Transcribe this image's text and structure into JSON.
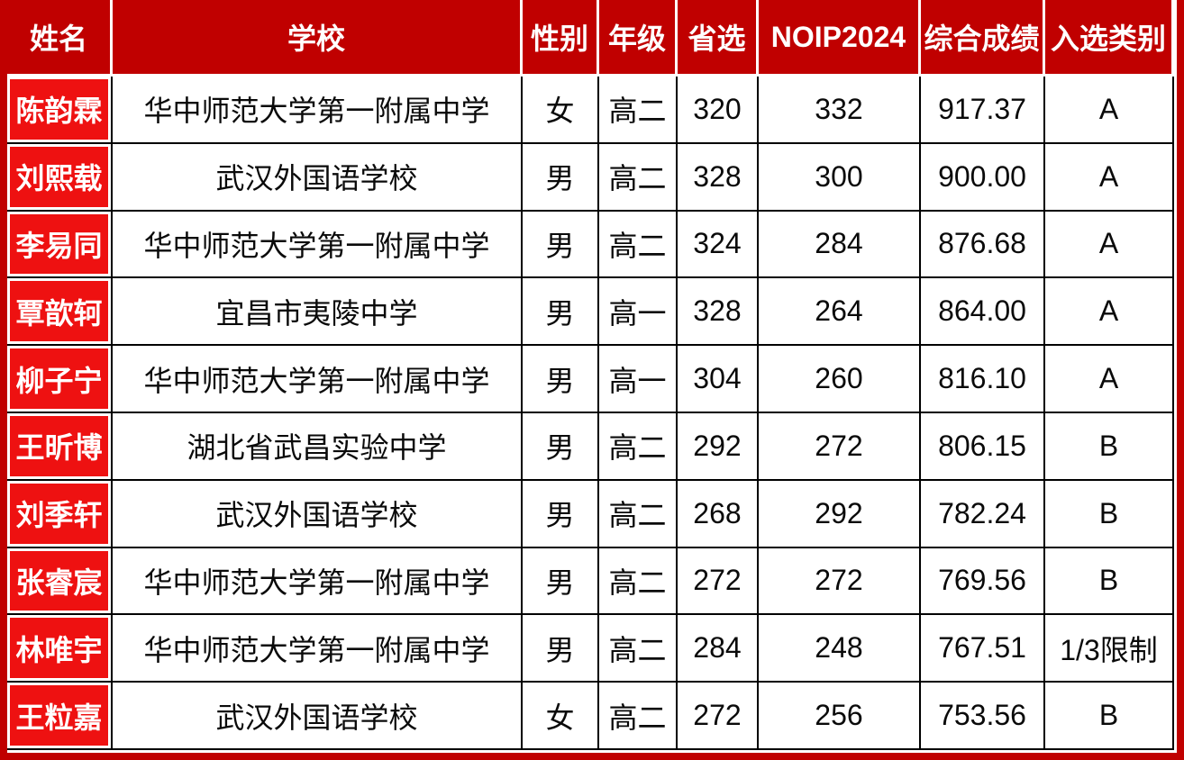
{
  "colors": {
    "frame_and_header_red": "#c00000",
    "name_cell_red": "#ee1111",
    "gridline_black": "#000000",
    "header_text": "#ffffff",
    "body_text": "#0a0a0a"
  },
  "table": {
    "columns": [
      "姓名",
      "学校",
      "性别",
      "年级",
      "省选",
      "NOIP2024",
      "综合成绩",
      "入选类别"
    ],
    "rows": [
      {
        "name": "陈韵霖",
        "school": "华中师范大学第一附属中学",
        "gender": "女",
        "grade": "高二",
        "provincial": "320",
        "noip": "332",
        "composite": "917.37",
        "category": "A"
      },
      {
        "name": "刘熙载",
        "school": "武汉外国语学校",
        "gender": "男",
        "grade": "高二",
        "provincial": "328",
        "noip": "300",
        "composite": "900.00",
        "category": "A"
      },
      {
        "name": "李易同",
        "school": "华中师范大学第一附属中学",
        "gender": "男",
        "grade": "高二",
        "provincial": "324",
        "noip": "284",
        "composite": "876.68",
        "category": "A"
      },
      {
        "name": "覃歆轲",
        "school": "宜昌市夷陵中学",
        "gender": "男",
        "grade": "高一",
        "provincial": "328",
        "noip": "264",
        "composite": "864.00",
        "category": "A"
      },
      {
        "name": "柳子宁",
        "school": "华中师范大学第一附属中学",
        "gender": "男",
        "grade": "高一",
        "provincial": "304",
        "noip": "260",
        "composite": "816.10",
        "category": "A"
      },
      {
        "name": "王昕博",
        "school": "湖北省武昌实验中学",
        "gender": "男",
        "grade": "高二",
        "provincial": "292",
        "noip": "272",
        "composite": "806.15",
        "category": "B"
      },
      {
        "name": "刘季轩",
        "school": "武汉外国语学校",
        "gender": "男",
        "grade": "高二",
        "provincial": "268",
        "noip": "292",
        "composite": "782.24",
        "category": "B"
      },
      {
        "name": "张睿宸",
        "school": "华中师范大学第一附属中学",
        "gender": "男",
        "grade": "高二",
        "provincial": "272",
        "noip": "272",
        "composite": "769.56",
        "category": "B"
      },
      {
        "name": "林唯宇",
        "school": "华中师范大学第一附属中学",
        "gender": "男",
        "grade": "高二",
        "provincial": "284",
        "noip": "248",
        "composite": "767.51",
        "category": "1/3限制"
      },
      {
        "name": "王粒嘉",
        "school": "武汉外国语学校",
        "gender": "女",
        "grade": "高二",
        "provincial": "272",
        "noip": "256",
        "composite": "753.56",
        "category": "B"
      }
    ]
  },
  "chart_data": {
    "type": "table",
    "title": "",
    "columns": [
      "姓名",
      "学校",
      "性别",
      "年级",
      "省选",
      "NOIP2024",
      "综合成绩",
      "入选类别"
    ],
    "rows": [
      [
        "陈韵霖",
        "华中师范大学第一附属中学",
        "女",
        "高二",
        320,
        332,
        917.37,
        "A"
      ],
      [
        "刘熙载",
        "武汉外国语学校",
        "男",
        "高二",
        328,
        300,
        900.0,
        "A"
      ],
      [
        "李易同",
        "华中师范大学第一附属中学",
        "男",
        "高二",
        324,
        284,
        876.68,
        "A"
      ],
      [
        "覃歆轲",
        "宜昌市夷陵中学",
        "男",
        "高一",
        328,
        264,
        864.0,
        "A"
      ],
      [
        "柳子宁",
        "华中师范大学第一附属中学",
        "男",
        "高一",
        304,
        260,
        816.1,
        "A"
      ],
      [
        "王昕博",
        "湖北省武昌实验中学",
        "男",
        "高二",
        292,
        272,
        806.15,
        "B"
      ],
      [
        "刘季轩",
        "武汉外国语学校",
        "男",
        "高二",
        268,
        292,
        782.24,
        "B"
      ],
      [
        "张睿宸",
        "华中师范大学第一附属中学",
        "男",
        "高二",
        272,
        272,
        769.56,
        "B"
      ],
      [
        "林唯宇",
        "华中师范大学第一附属中学",
        "男",
        "高二",
        284,
        248,
        767.51,
        "1/3限制"
      ],
      [
        "王粒嘉",
        "武汉外国语学校",
        "女",
        "高二",
        272,
        256,
        753.56,
        "B"
      ]
    ]
  }
}
